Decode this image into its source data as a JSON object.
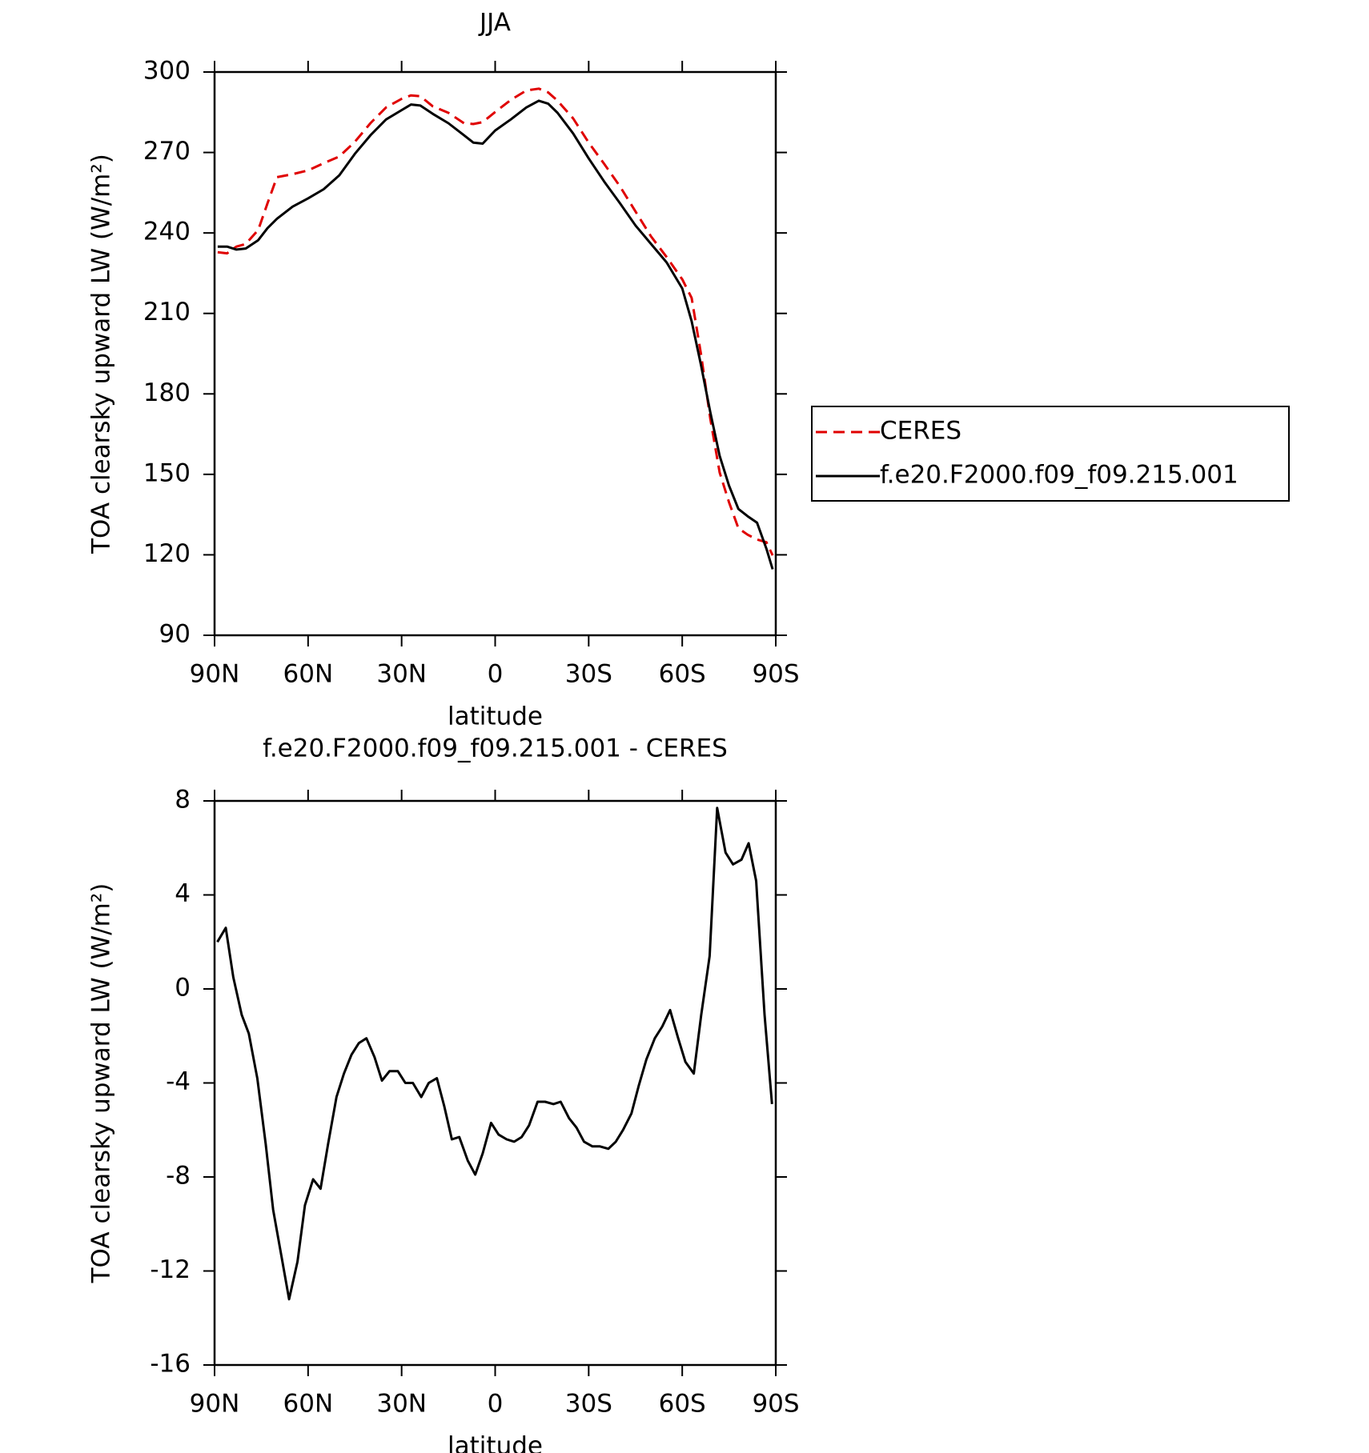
{
  "chart_data": [
    {
      "type": "line",
      "title": "JJA",
      "xlabel": "latitude",
      "ylabel": "TOA clearsky upward LW (W/m²)",
      "x": [
        89,
        86,
        83,
        80,
        76,
        73,
        70,
        65,
        60,
        55,
        50,
        45,
        40,
        35,
        30,
        27,
        24,
        20,
        15,
        10,
        7,
        4,
        0,
        -5,
        -10,
        -14,
        -17,
        -20,
        -25,
        -30,
        -35,
        -40,
        -45,
        -50,
        -55,
        -60,
        -63,
        -66,
        -69,
        -72,
        -75,
        -78,
        -81,
        -84,
        -87,
        -89
      ],
      "series": [
        {
          "name": "CERES",
          "color": "#e00000",
          "linestyle": "dashed",
          "values": [
            232.8,
            232.4,
            234.9,
            235.9,
            241.1,
            251.1,
            260.8,
            261.9,
            263.3,
            266.0,
            268.5,
            274.0,
            280.9,
            286.8,
            290.0,
            291.3,
            291.0,
            287.2,
            284.8,
            280.9,
            280.6,
            281.3,
            285.1,
            289.6,
            293.1,
            293.8,
            292.4,
            289.3,
            282.7,
            273.7,
            265.7,
            257.4,
            248.0,
            238.7,
            231.0,
            222.7,
            215.8,
            195.0,
            170.8,
            150.7,
            139.6,
            129.9,
            127.5,
            125.7,
            124.7,
            119.8
          ]
        },
        {
          "name": "f.e20.F2000.f09_f09.215.001",
          "color": "#000000",
          "linestyle": "solid",
          "values": [
            234.9,
            234.9,
            233.8,
            234.2,
            237.3,
            241.8,
            245.3,
            249.8,
            252.9,
            256.3,
            261.5,
            269.5,
            276.4,
            282.3,
            285.8,
            287.9,
            287.5,
            284.4,
            280.9,
            276.4,
            273.7,
            273.3,
            278.2,
            282.3,
            286.8,
            289.3,
            288.2,
            284.8,
            277.1,
            267.8,
            259.1,
            251.1,
            242.8,
            235.9,
            229.0,
            219.3,
            207.1,
            190.9,
            173.2,
            156.9,
            145.8,
            137.1,
            134.4,
            132.0,
            122.3,
            114.6
          ]
        }
      ],
      "xlim": [
        90,
        -90
      ],
      "xticks": [
        {
          "value": 90,
          "label": "90N"
        },
        {
          "value": 60,
          "label": "60N"
        },
        {
          "value": 30,
          "label": "30N"
        },
        0,
        {
          "value": -30,
          "label": "30S"
        },
        {
          "value": -60,
          "label": "60S"
        },
        {
          "value": -90,
          "label": "90S"
        }
      ],
      "ylim": [
        90,
        300
      ],
      "yticks": [
        90,
        120,
        150,
        180,
        210,
        240,
        270,
        300
      ],
      "legend": "right"
    },
    {
      "type": "line",
      "title": "f.e20.F2000.f09_f09.215.001 - CERES",
      "xlabel": "latitude",
      "ylabel": "TOA clearsky upward LW (W/m²)",
      "x": [
        89.1,
        86.4,
        84.0,
        81.3,
        79.0,
        76.3,
        73.6,
        71.2,
        68.5,
        66.1,
        63.4,
        61.0,
        58.4,
        56.0,
        53.6,
        50.9,
        48.5,
        46.1,
        43.7,
        41.3,
        38.7,
        36.3,
        33.9,
        31.2,
        28.8,
        26.4,
        23.7,
        21.3,
        18.7,
        16.3,
        13.9,
        11.5,
        8.8,
        6.4,
        4.0,
        1.3,
        -1.1,
        -3.7,
        -6.1,
        -8.5,
        -10.9,
        -13.6,
        -16.0,
        -18.7,
        -21.0,
        -23.7,
        -26.1,
        -28.5,
        -31.2,
        -33.6,
        -36.3,
        -38.7,
        -41.0,
        -43.7,
        -46.1,
        -48.5,
        -51.2,
        -53.6,
        -56.1,
        -58.7,
        -61.0,
        -63.7,
        -66.1,
        -68.8,
        -71.2,
        -73.9,
        -76.3,
        -79.0,
        -81.3,
        -83.7,
        -86.4,
        -88.8
      ],
      "series": [
        {
          "color": "#000000",
          "linestyle": "solid",
          "values": [
            2.0,
            2.6,
            0.5,
            -1.1,
            -1.9,
            -3.8,
            -6.6,
            -9.4,
            -11.4,
            -13.2,
            -11.6,
            -9.2,
            -8.1,
            -8.5,
            -6.6,
            -4.6,
            -3.6,
            -2.8,
            -2.3,
            -2.1,
            -2.9,
            -3.9,
            -3.5,
            -3.5,
            -4.0,
            -4.0,
            -4.6,
            -4.0,
            -3.8,
            -5.0,
            -6.4,
            -6.3,
            -7.3,
            -7.9,
            -7.0,
            -5.7,
            -6.2,
            -6.4,
            -6.5,
            -6.3,
            -5.8,
            -4.8,
            -4.8,
            -4.9,
            -4.8,
            -5.5,
            -5.9,
            -6.5,
            -6.7,
            -6.7,
            -6.8,
            -6.5,
            -6.0,
            -5.3,
            -4.1,
            -3.0,
            -2.1,
            -1.6,
            -0.9,
            -2.1,
            -3.1,
            -3.6,
            -1.1,
            1.4,
            7.7,
            5.8,
            5.3,
            5.5,
            6.2,
            4.6,
            -1.1,
            -4.9
          ]
        }
      ],
      "xlim": [
        90,
        -90
      ],
      "xticks": [
        {
          "value": 90,
          "label": "90N"
        },
        {
          "value": 60,
          "label": "60N"
        },
        {
          "value": 30,
          "label": "30N"
        },
        0,
        {
          "value": -30,
          "label": "30S"
        },
        {
          "value": -60,
          "label": "60S"
        },
        {
          "value": -90,
          "label": "90S"
        }
      ],
      "ylim": [
        -16,
        8
      ],
      "yticks": [
        -16,
        -12,
        -8,
        -4,
        0,
        4,
        8
      ]
    }
  ]
}
